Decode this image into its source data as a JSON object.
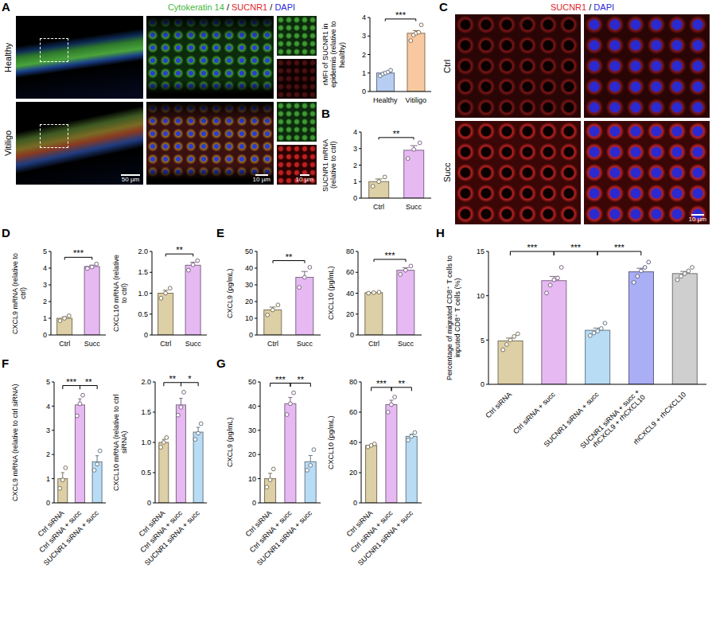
{
  "panel_labels": [
    "A",
    "B",
    "C",
    "D",
    "E",
    "F",
    "G",
    "H"
  ],
  "images": {
    "A": {
      "channels": [
        {
          "name": "Cytokeratin 14",
          "color": "#3fb83a"
        },
        {
          "name": "SUCNR1",
          "color": "#e0262a"
        },
        {
          "name": "DAPI",
          "color": "#2b2bd9"
        }
      ],
      "separator": "/",
      "rows": [
        "Healthy",
        "Vitiligo"
      ],
      "scale_bars": [
        "50 µm",
        "10 µm",
        "10 µm"
      ]
    },
    "C": {
      "channels": [
        {
          "name": "SUCNR1",
          "color": "#e0262a"
        },
        {
          "name": "DAPI",
          "color": "#2b2bd9"
        }
      ],
      "separator": "/",
      "rows": [
        "Ctrl",
        "Succ"
      ],
      "scale_bars": [
        "10 µm"
      ]
    }
  },
  "chart_data": [
    {
      "type": "bar",
      "ylabel": "rMFI of SUCNR1 in epidermis (relative to healthy)",
      "categories": [
        "Healthy",
        "Vitiligo"
      ],
      "values": [
        1.0,
        3.15
      ],
      "errors": [
        0.05,
        0.14
      ],
      "points": [
        [
          0.85,
          0.95,
          1.0,
          1.05,
          1.15
        ],
        [
          2.75,
          3.05,
          3.15,
          3.2,
          3.6
        ]
      ],
      "colors": [
        "#b7cdf2",
        "#f8c9a0"
      ],
      "ylim": [
        0,
        4
      ],
      "yticks": [
        0,
        1,
        2,
        3,
        4
      ],
      "significance": [
        {
          "from": "Healthy",
          "to": "Vitiligo",
          "label": "***"
        }
      ]
    },
    {
      "type": "bar",
      "ylabel": "SUCNR1 mRNA (relative to ctrl)",
      "categories": [
        "Ctrl",
        "Succ"
      ],
      "values": [
        1.0,
        2.9
      ],
      "errors": [
        0.16,
        0.28
      ],
      "points": [
        [
          0.72,
          1.0,
          1.28
        ],
        [
          2.4,
          2.95,
          3.35
        ]
      ],
      "colors": [
        "#ddcfa6",
        "#e6b9f2"
      ],
      "ylim": [
        0,
        4
      ],
      "yticks": [
        0,
        1,
        2,
        3,
        4
      ],
      "significance": [
        {
          "from": "Ctrl",
          "to": "Succ",
          "label": "**"
        }
      ]
    },
    {
      "type": "bar",
      "ylabel": "CXCL9 mRNA (relative to ctrl)",
      "categories": [
        "Ctrl",
        "Succ"
      ],
      "values": [
        1.0,
        4.1
      ],
      "errors": [
        0.09,
        0.08
      ],
      "points": [
        [
          0.85,
          1.0,
          1.15
        ],
        [
          3.98,
          4.07,
          4.25
        ]
      ],
      "colors": [
        "#ddcfa6",
        "#e6b9f2"
      ],
      "ylim": [
        0,
        5
      ],
      "yticks": [
        0,
        1,
        2,
        3,
        4,
        5
      ],
      "significance": [
        {
          "from": "Ctrl",
          "to": "Succ",
          "label": "***"
        }
      ]
    },
    {
      "type": "bar",
      "ylabel": "CXCL10 mRNA (relative to ctrl)",
      "categories": [
        "Ctrl",
        "Succ"
      ],
      "values": [
        1.0,
        1.67
      ],
      "errors": [
        0.07,
        0.07
      ],
      "points": [
        [
          0.88,
          1.0,
          1.12
        ],
        [
          1.55,
          1.68,
          1.78
        ]
      ],
      "colors": [
        "#ddcfa6",
        "#e6b9f2"
      ],
      "ylim": [
        0,
        2
      ],
      "yticks": [
        0,
        0.5,
        {
          "value": 1,
          "label": "1.0"
        },
        1.5,
        {
          "value": 2,
          "label": "2.0"
        }
      ],
      "significance": [
        {
          "from": "Ctrl",
          "to": "Succ",
          "label": "**"
        }
      ]
    },
    {
      "type": "bar",
      "ylabel": "CXCL9 (pg/mL)",
      "categories": [
        "Ctrl",
        "Succ"
      ],
      "values": [
        15,
        34.5
      ],
      "errors": [
        1.7,
        3.5
      ],
      "points": [
        [
          12,
          15,
          18
        ],
        [
          28.5,
          34.5,
          40.5
        ]
      ],
      "colors": [
        "#ddcfa6",
        "#e6b9f2"
      ],
      "ylim": [
        0,
        50
      ],
      "yticks": [
        0,
        10,
        20,
        30,
        40,
        50
      ],
      "significance": [
        {
          "from": "Ctrl",
          "to": "Succ",
          "label": "**"
        }
      ]
    },
    {
      "type": "bar",
      "ylabel": "CXCL10 (pg/mL)",
      "categories": [
        "Ctrl",
        "Succ"
      ],
      "values": [
        40.5,
        62
      ],
      "errors": [
        0.3,
        2.3
      ],
      "points": [
        [
          40,
          40.5,
          41
        ],
        [
          58,
          62,
          66
        ]
      ],
      "colors": [
        "#ddcfa6",
        "#e6b9f2"
      ],
      "ylim": [
        0,
        80
      ],
      "yticks": [
        0,
        20,
        40,
        60,
        80
      ],
      "significance": [
        {
          "from": "Ctrl",
          "to": "Succ",
          "label": "***"
        }
      ]
    },
    {
      "type": "bar",
      "ylabel": "CXCL9 mRNA (relative to ctrl siRNA)",
      "categories": [
        "Ctrl siRNA",
        "Ctrl siRNA + succ",
        "SUCNR1 siRNA + succ"
      ],
      "values": [
        1.0,
        4.05,
        1.7
      ],
      "errors": [
        0.25,
        0.25,
        0.25
      ],
      "points": [
        [
          0.6,
          0.95,
          1.45
        ],
        [
          3.6,
          4.1,
          4.45
        ],
        [
          1.35,
          1.6,
          2.15
        ]
      ],
      "colors": [
        "#ddcfa6",
        "#e6b9f2",
        "#b9dcf5"
      ],
      "ylim": [
        0,
        5
      ],
      "yticks": [
        0,
        1,
        2,
        3,
        4,
        5
      ],
      "significance": [
        {
          "from": "Ctrl siRNA",
          "to": "Ctrl siRNA + succ",
          "label": "***"
        },
        {
          "from": "Ctrl siRNA + succ",
          "to": "SUCNR1 siRNA + succ",
          "label": "**"
        }
      ]
    },
    {
      "type": "bar",
      "ylabel": "CXCL10 mRNA (relative to ctrl siRNA)",
      "categories": [
        "Ctrl siRNA",
        "Ctrl siRNA + succ",
        "SUCNR1 siRNA + succ"
      ],
      "values": [
        1.0,
        1.62,
        1.17
      ],
      "errors": [
        0.05,
        0.11,
        0.08
      ],
      "points": [
        [
          0.92,
          1.0,
          1.08
        ],
        [
          1.45,
          1.58,
          1.83
        ],
        [
          1.05,
          1.15,
          1.31
        ]
      ],
      "colors": [
        "#ddcfa6",
        "#e6b9f2",
        "#b9dcf5"
      ],
      "ylim": [
        0,
        2
      ],
      "yticks": [
        0,
        0.5,
        {
          "value": 1,
          "label": "1.0"
        },
        1.5,
        {
          "value": 2,
          "label": "2.0"
        }
      ],
      "significance": [
        {
          "from": "Ctrl siRNA",
          "to": "Ctrl siRNA + succ",
          "label": "**"
        },
        {
          "from": "Ctrl siRNA + succ",
          "to": "SUCNR1 siRNA + succ",
          "label": "*"
        }
      ]
    },
    {
      "type": "bar",
      "ylabel": "CXCL9 (pg/mL)",
      "categories": [
        "Ctrl siRNA",
        "Ctrl siRNA + succ",
        "SUCNR1 siRNA + succ"
      ],
      "values": [
        10,
        41,
        17
      ],
      "errors": [
        2.2,
        2.6,
        2.6
      ],
      "points": [
        [
          6.5,
          9.5,
          14
        ],
        [
          36.5,
          41,
          45.5
        ],
        [
          13.5,
          15.5,
          22
        ]
      ],
      "colors": [
        "#ddcfa6",
        "#e6b9f2",
        "#b9dcf5"
      ],
      "ylim": [
        0,
        50
      ],
      "yticks": [
        0,
        10,
        20,
        30,
        40,
        50
      ],
      "significance": [
        {
          "from": "Ctrl siRNA",
          "to": "Ctrl siRNA + succ",
          "label": "***"
        },
        {
          "from": "Ctrl siRNA + succ",
          "to": "SUCNR1 siRNA + succ",
          "label": "**"
        }
      ]
    },
    {
      "type": "bar",
      "ylabel": "CXCL10 (pg/mL)",
      "categories": [
        "Ctrl siRNA",
        "Ctrl siRNA + succ",
        "SUCNR1 siRNA + succ"
      ],
      "values": [
        38,
        65,
        44
      ],
      "errors": [
        0.6,
        2.9,
        1.4
      ],
      "points": [
        [
          37,
          38,
          39
        ],
        [
          60,
          65,
          70
        ],
        [
          41.5,
          44,
          46.5
        ]
      ],
      "colors": [
        "#ddcfa6",
        "#e6b9f2",
        "#b9dcf5"
      ],
      "ylim": [
        0,
        80
      ],
      "yticks": [
        0,
        20,
        40,
        60,
        80
      ],
      "significance": [
        {
          "from": "Ctrl siRNA",
          "to": "Ctrl siRNA + succ",
          "label": "***"
        },
        {
          "from": "Ctrl siRNA + succ",
          "to": "SUCNR1 siRNA + succ",
          "label": "**"
        }
      ]
    },
    {
      "type": "bar",
      "ylabel": "Percentage of migrated CD8⁺ T cells to inputed CD8⁺ T cells (%)",
      "categories": [
        "Ctrl siRNA",
        "Ctrl siRNA + succ",
        "SUCNR1 siRNA + succ",
        "SUCNR1 siRNA + succ + rhCXCL9 + rhCXCL10",
        "rhCXCL9 + rhCXCL10"
      ],
      "values": [
        4.9,
        11.7,
        6.1,
        12.7,
        12.5
      ],
      "errors": [
        0.32,
        0.48,
        0.25,
        0.4,
        0.24
      ],
      "points": [
        [
          3.9,
          4.5,
          5,
          5.4,
          5.7
        ],
        [
          10.3,
          11.2,
          11.8,
          12,
          13.2
        ],
        [
          5.5,
          5.8,
          6,
          6.3,
          6.9
        ],
        [
          11.5,
          12.2,
          12.8,
          13.2,
          13.8
        ],
        [
          11.8,
          12.2,
          12.5,
          12.8,
          13.2
        ]
      ],
      "colors": [
        "#ddcfa6",
        "#e6b9f2",
        "#b9dcf5",
        "#aaaef5",
        "#cfcfcf"
      ],
      "ylim": [
        0,
        15
      ],
      "yticks": [
        0,
        5,
        10,
        15
      ],
      "significance": [
        {
          "from": "Ctrl siRNA",
          "to": "Ctrl siRNA + succ",
          "label": "***"
        },
        {
          "from": "Ctrl siRNA + succ",
          "to": "SUCNR1 siRNA + succ",
          "label": "***"
        },
        {
          "from": "SUCNR1 siRNA + succ",
          "to": "SUCNR1 siRNA + succ + rhCXCL9 + rhCXCL10",
          "label": "***"
        }
      ]
    }
  ]
}
